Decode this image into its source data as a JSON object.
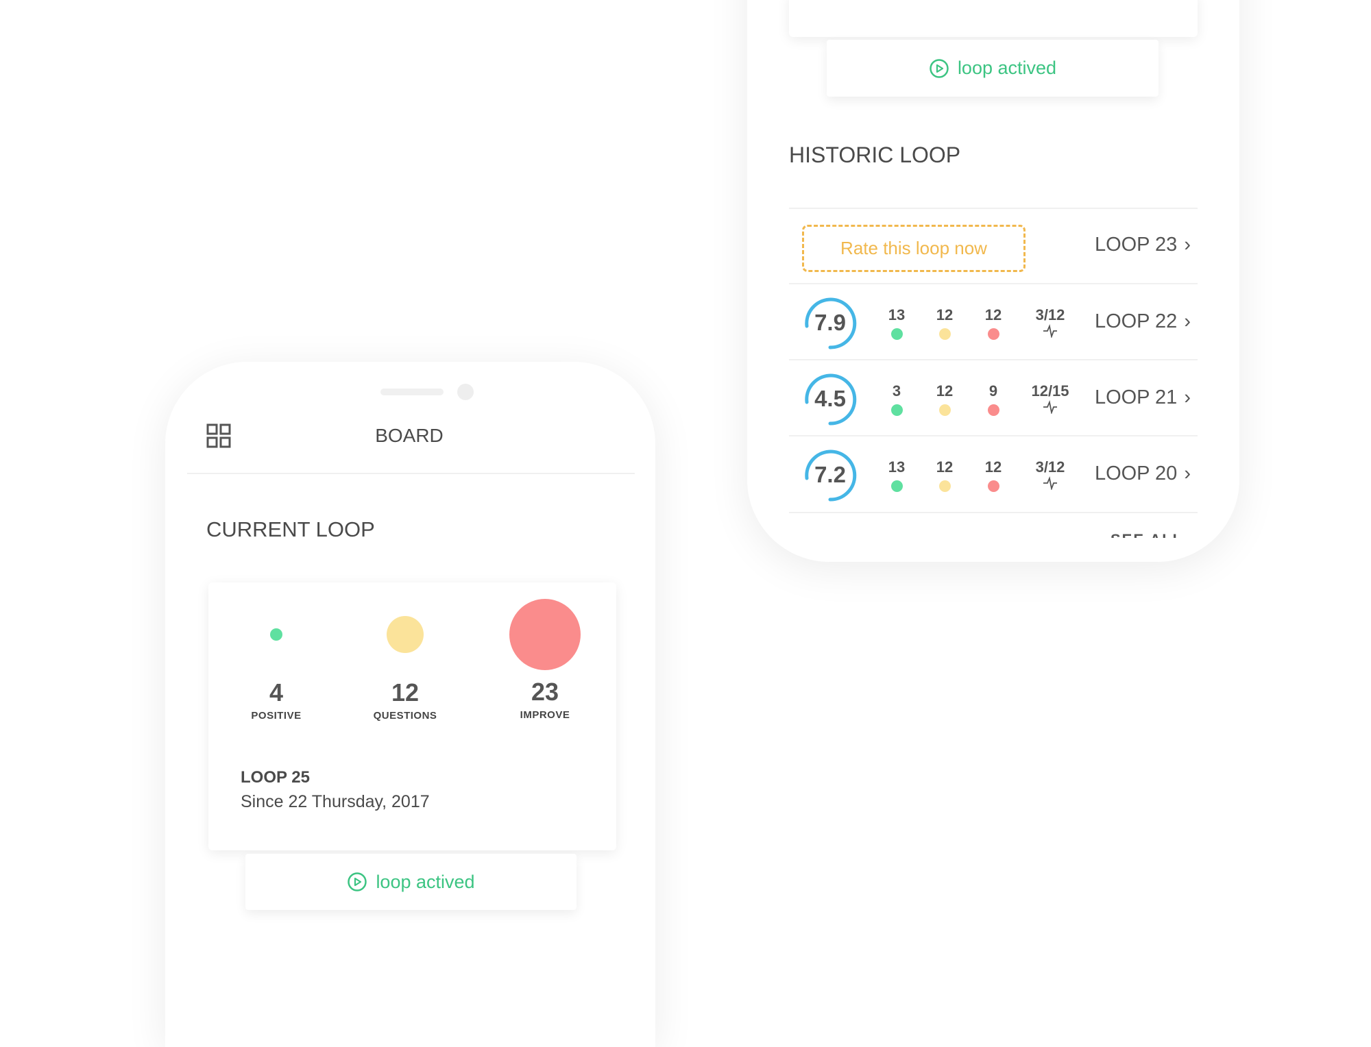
{
  "colors": {
    "positive": "#5fe0a0",
    "questions": "#fbe39a",
    "improve": "#fa8c8c",
    "accent_green": "#3cc482",
    "rating_ring": "#45b6e6",
    "rate_cta": "#f1b84d"
  },
  "right_phone": {
    "loop_status": {
      "icon": "play-circle-icon",
      "label": "loop actived"
    },
    "historic_title": "HISTORIC LOOP",
    "pending": {
      "button": "Rate this loop now",
      "loop": "LOOP 23"
    },
    "rows": [
      {
        "score": "7.9",
        "positive": "13",
        "questions": "12",
        "improve": "12",
        "ratio": "3/12",
        "loop": "LOOP 22"
      },
      {
        "score": "4.5",
        "positive": "3",
        "questions": "12",
        "improve": "9",
        "ratio": "12/15",
        "loop": "LOOP 21"
      },
      {
        "score": "7.2",
        "positive": "13",
        "questions": "12",
        "improve": "12",
        "ratio": "3/12",
        "loop": "LOOP 20"
      }
    ],
    "see_all": "SEE ALL"
  },
  "left_phone": {
    "header": {
      "menu_icon": "grid-icon",
      "title": "BOARD"
    },
    "section_title": "CURRENT LOOP",
    "stats": [
      {
        "value": "4",
        "label": "POSITIVE"
      },
      {
        "value": "12",
        "label": "QUESTIONS"
      },
      {
        "value": "23",
        "label": "IMPROVE"
      }
    ],
    "loop_name": "LOOP 25",
    "loop_since": "Since 22 Thursday, 2017",
    "loop_status": {
      "icon": "play-circle-icon",
      "label": "loop actived"
    }
  }
}
